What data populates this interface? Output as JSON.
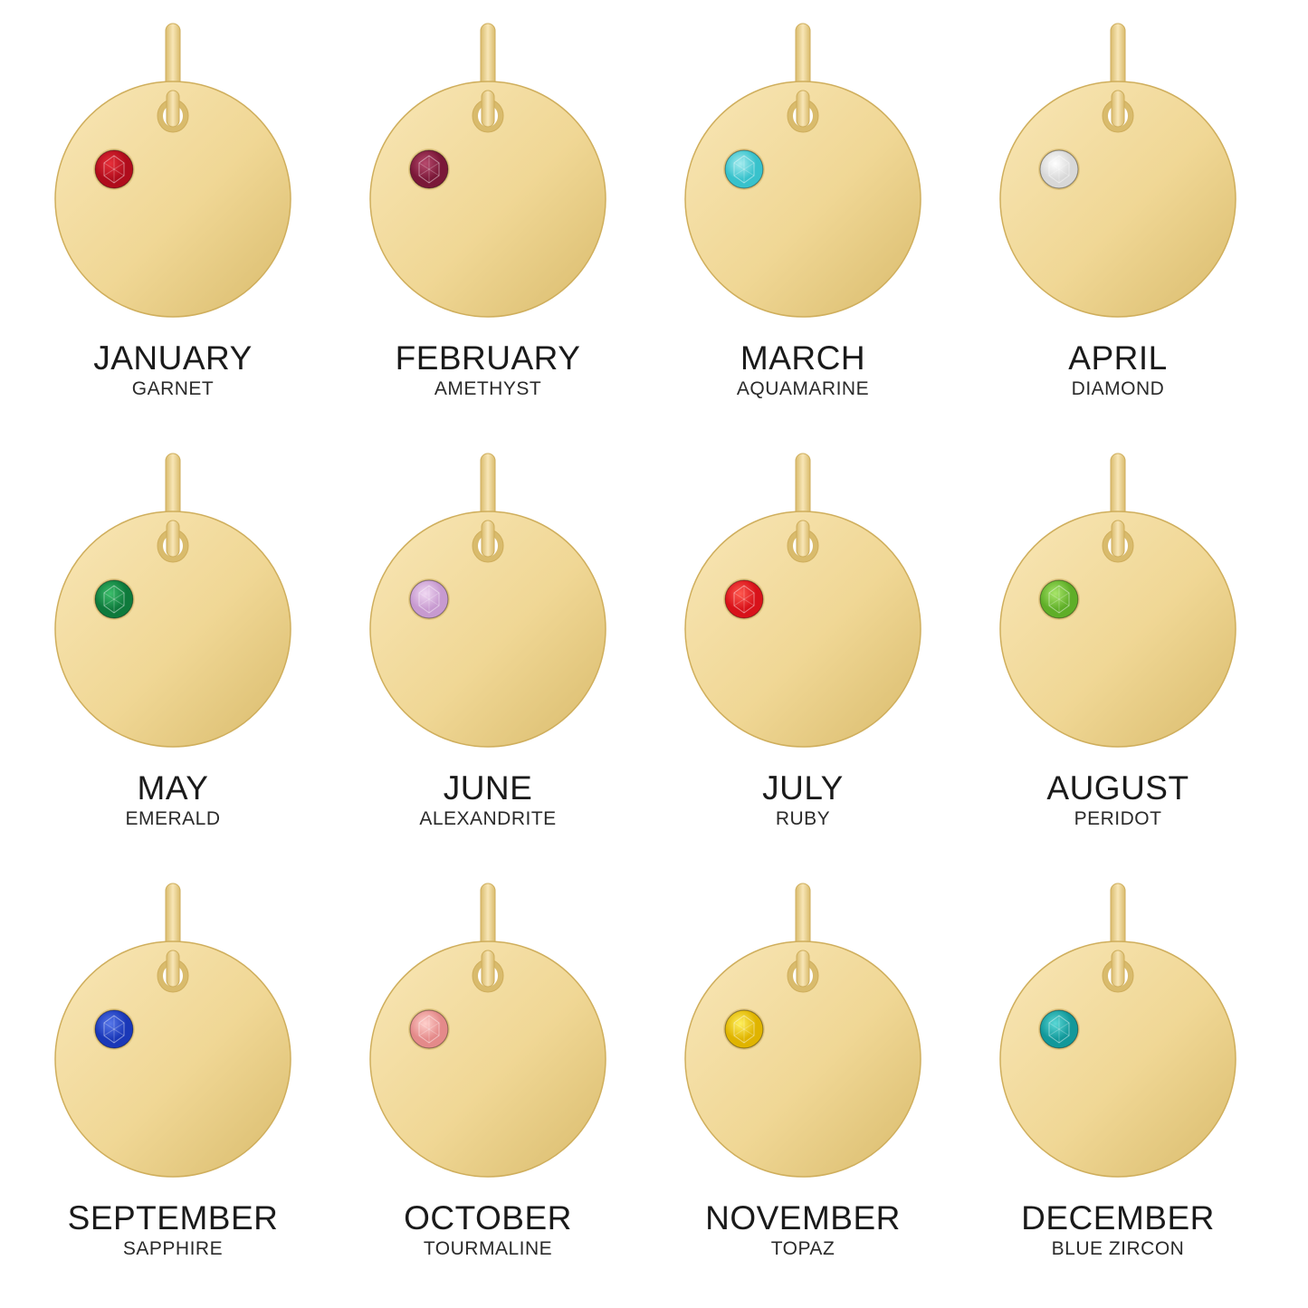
{
  "charms": [
    {
      "month": "JANUARY",
      "stone": "GARNET",
      "gem_color": "#b00c1c",
      "gem_light": "#e8303a"
    },
    {
      "month": "FEBRUARY",
      "stone": "AMETHYST",
      "gem_color": "#7a1838",
      "gem_light": "#b84a6e"
    },
    {
      "month": "MARCH",
      "stone": "AQUAMARINE",
      "gem_color": "#38c2cc",
      "gem_light": "#a6ecef"
    },
    {
      "month": "APRIL",
      "stone": "DIAMOND",
      "gem_color": "#d8d8d8",
      "gem_light": "#ffffff"
    },
    {
      "month": "MAY",
      "stone": "EMERALD",
      "gem_color": "#0e7a3c",
      "gem_light": "#3cbf6c"
    },
    {
      "month": "JUNE",
      "stone": "ALEXANDRITE",
      "gem_color": "#c79ad0",
      "gem_light": "#f0d8f2"
    },
    {
      "month": "JULY",
      "stone": "RUBY",
      "gem_color": "#d8121a",
      "gem_light": "#ff5a50"
    },
    {
      "month": "AUGUST",
      "stone": "PERIDOT",
      "gem_color": "#5fae28",
      "gem_light": "#a8e66a"
    },
    {
      "month": "SEPTEMBER",
      "stone": "SAPPHIRE",
      "gem_color": "#1a38b8",
      "gem_light": "#5878ea"
    },
    {
      "month": "OCTOBER",
      "stone": "TOURMALINE",
      "gem_color": "#e48a8a",
      "gem_light": "#ffd0cc"
    },
    {
      "month": "NOVEMBER",
      "stone": "TOPAZ",
      "gem_color": "#e0b400",
      "gem_light": "#fff060"
    },
    {
      "month": "DECEMBER",
      "stone": "BLUE ZIRCON",
      "gem_color": "#12989a",
      "gem_light": "#5ad8d6"
    }
  ],
  "colors": {
    "gold_base": "#f0d795",
    "gold_light": "#f8e6b6",
    "gold_dark": "#d9bb6c",
    "gold_edge": "#cfae5c"
  },
  "icons": {
    "charm": "gold-disc-pendant-icon",
    "gem": "round-gemstone-icon"
  }
}
